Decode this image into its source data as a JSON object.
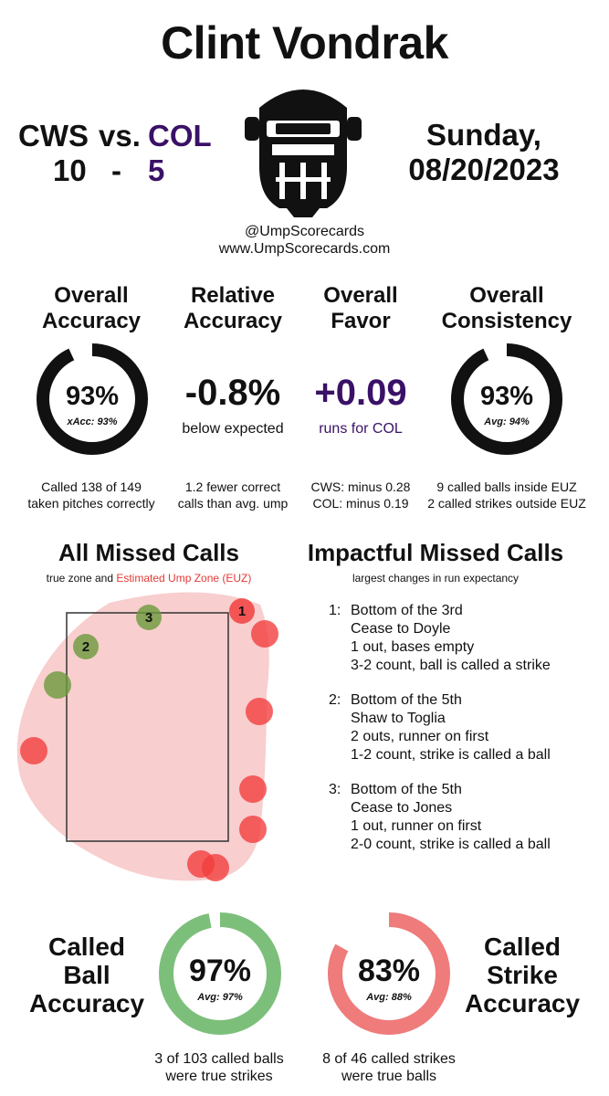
{
  "title": "Clint Vondrak",
  "game": {
    "away_team": "CWS",
    "vs": "vs.",
    "home_team": "COL",
    "away_score": "10",
    "dash": "-",
    "home_score": "5",
    "day": "Sunday,",
    "date": "08/20/2023"
  },
  "credits": {
    "handle": "@UmpScorecards",
    "site": "www.UmpScorecards.com"
  },
  "stats": {
    "overall_accuracy": {
      "head1": "Overall",
      "head2": "Accuracy",
      "value": "93%",
      "sub": "xAcc: 93%",
      "fraction": 0.93,
      "note1": "Called 138 of 149",
      "note2": "taken pitches correctly"
    },
    "relative_accuracy": {
      "head1": "Relative",
      "head2": "Accuracy",
      "value": "-0.8%",
      "sub": "below expected",
      "note1": "1.2 fewer correct",
      "note2": "calls than avg. ump"
    },
    "overall_favor": {
      "head1": "Overall",
      "head2": "Favor",
      "value": "+0.09",
      "sub": "runs for COL",
      "note1": "CWS: minus 0.28",
      "note2": "COL: minus 0.19"
    },
    "overall_consistency": {
      "head1": "Overall",
      "head2": "Consistency",
      "value": "93%",
      "sub": "Avg: 94%",
      "fraction": 0.93,
      "note1": "9 called balls inside EUZ",
      "note2": "2 called strikes outside EUZ"
    }
  },
  "all_missed": {
    "title": "All Missed Calls",
    "legend_plain": "true zone and",
    "legend_red": "Estimated Ump Zone (EUZ)",
    "labels": [
      "1",
      "2",
      "3"
    ]
  },
  "impactful": {
    "title": "Impactful Missed Calls",
    "subtitle": "largest changes in run expectancy",
    "items": [
      {
        "num": "1:",
        "l1": "Bottom of the 3rd",
        "l2": "Cease to Doyle",
        "l3": "1 out, bases empty",
        "l4": "3-2 count, ball is called a strike"
      },
      {
        "num": "2:",
        "l1": "Bottom of the 5th",
        "l2": "Shaw to Toglia",
        "l3": "2 outs, runner on first",
        "l4": "1-2 count, strike is called a ball"
      },
      {
        "num": "3:",
        "l1": "Bottom of the 5th",
        "l2": "Cease to Jones",
        "l3": "1 out, runner on first",
        "l4": "2-0 count, strike is called a ball"
      }
    ]
  },
  "ball_accuracy": {
    "head1": "Called",
    "head2": "Ball",
    "head3": "Accuracy",
    "value": "97%",
    "sub": "Avg: 97%",
    "fraction": 0.97,
    "note1": "3 of 103 called balls",
    "note2": "were true strikes"
  },
  "strike_accuracy": {
    "head1": "Called",
    "head2": "Strike",
    "head3": "Accuracy",
    "value": "83%",
    "sub": "Avg: 88%",
    "fraction": 0.83,
    "note1": "8 of 46 called strikes",
    "note2": "were true balls"
  },
  "colors": {
    "purple": "#3a1166",
    "green": "#7cbf7a",
    "red": "#ef7b7b",
    "euz_fill": "#f7c5c5",
    "miss_red": "#f23f3f",
    "miss_green": "#6a9a3b"
  }
}
